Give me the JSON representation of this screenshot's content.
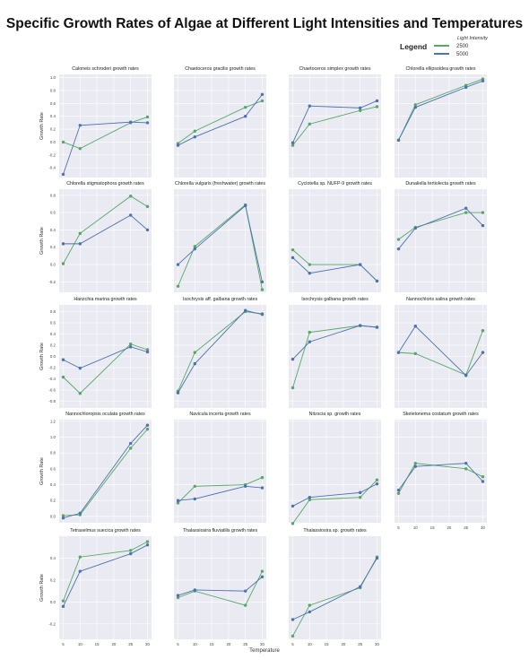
{
  "title": "Specific Growth Rates of Algae at Different Light Intensities and Temperatures",
  "legend": {
    "title": "Legend",
    "subtitle": "Light Intensity",
    "items": [
      {
        "label": "2500",
        "color": "#55a868"
      },
      {
        "label": "5000",
        "color": "#4c72b0"
      }
    ]
  },
  "xlabel": "Temperature",
  "chart_data": [
    {
      "type": "line",
      "title": "Caloneis schroderi growth rates",
      "ylabel": "Growth Rate",
      "x": [
        5,
        10,
        25,
        30
      ],
      "xticks": [],
      "ylim": [
        -0.55,
        1.05
      ],
      "yticks": [
        -0.4,
        -0.2,
        0.0,
        0.2,
        0.4,
        0.6,
        0.8,
        1.0
      ],
      "series": [
        {
          "name": "2500",
          "values": [
            0.0,
            -0.1,
            0.3,
            0.39
          ]
        },
        {
          "name": "5000",
          "values": [
            -0.5,
            0.26,
            0.31,
            0.3
          ]
        }
      ]
    },
    {
      "type": "line",
      "title": "Chaetoceros gracilis growth rates",
      "x": [
        5,
        10,
        25,
        30
      ],
      "ylim": [
        -0.55,
        1.05
      ],
      "series": [
        {
          "name": "2500",
          "values": [
            -0.02,
            0.17,
            0.54,
            0.64
          ]
        },
        {
          "name": "5000",
          "values": [
            -0.05,
            0.08,
            0.4,
            0.74
          ]
        }
      ]
    },
    {
      "type": "line",
      "title": "Chaetoceros simplex growth rates",
      "x": [
        5,
        10,
        25,
        30
      ],
      "ylim": [
        -0.55,
        1.05
      ],
      "series": [
        {
          "name": "2500",
          "values": [
            -0.05,
            0.28,
            0.49,
            0.55
          ]
        },
        {
          "name": "5000",
          "values": [
            -0.01,
            0.56,
            0.53,
            0.64
          ]
        }
      ]
    },
    {
      "type": "line",
      "title": "Chlorella ellipsoidea growth rates",
      "x": [
        5,
        10,
        25,
        30
      ],
      "ylim": [
        -0.55,
        1.05
      ],
      "series": [
        {
          "name": "2500",
          "values": [
            0.03,
            0.58,
            0.88,
            0.98
          ]
        },
        {
          "name": "5000",
          "values": [
            0.03,
            0.54,
            0.85,
            0.95
          ]
        }
      ]
    },
    {
      "type": "line",
      "title": "Chlorella stigmatophora growth rates",
      "ylabel": "Growth Rate",
      "x": [
        5,
        10,
        25,
        30
      ],
      "ylim": [
        -0.32,
        0.87
      ],
      "yticks": [
        -0.2,
        0.0,
        0.2,
        0.4,
        0.6,
        0.8
      ],
      "series": [
        {
          "name": "2500",
          "values": [
            0.01,
            0.36,
            0.79,
            0.67
          ]
        },
        {
          "name": "5000",
          "values": [
            0.24,
            0.24,
            0.57,
            0.4
          ]
        }
      ]
    },
    {
      "type": "line",
      "title": "Chlorella vulgaris (freshwater) growth rates",
      "x": [
        5,
        10,
        25,
        30
      ],
      "ylim": [
        -0.32,
        0.87
      ],
      "series": [
        {
          "name": "2500",
          "values": [
            -0.25,
            0.21,
            0.69,
            -0.29
          ]
        },
        {
          "name": "5000",
          "values": [
            0.0,
            0.18,
            0.68,
            -0.2
          ]
        }
      ]
    },
    {
      "type": "line",
      "title": "Cyclotella sp. NUFP-9 growth rates",
      "x": [
        5,
        10,
        25,
        30
      ],
      "ylim": [
        -0.32,
        0.87
      ],
      "series": [
        {
          "name": "2500",
          "values": [
            0.17,
            0.0,
            0.0,
            -0.19
          ]
        },
        {
          "name": "5000",
          "values": [
            0.08,
            -0.1,
            0.0,
            -0.19
          ]
        }
      ]
    },
    {
      "type": "line",
      "title": "Dunaliella tertiolecta growth rates",
      "x": [
        5,
        10,
        25,
        30
      ],
      "ylim": [
        -0.32,
        0.87
      ],
      "series": [
        {
          "name": "2500",
          "values": [
            0.29,
            0.43,
            0.6,
            0.6
          ]
        },
        {
          "name": "5000",
          "values": [
            0.18,
            0.42,
            0.65,
            0.45
          ]
        }
      ]
    },
    {
      "type": "line",
      "title": "Hanzchia marina growth rates",
      "ylabel": "Growth Rate",
      "x": [
        5,
        10,
        25,
        30
      ],
      "ylim": [
        -0.92,
        0.92
      ],
      "yticks": [
        -0.8,
        -0.6,
        -0.4,
        -0.2,
        0.0,
        0.2,
        0.4,
        0.6,
        0.8
      ],
      "series": [
        {
          "name": "2500",
          "values": [
            -0.37,
            -0.66,
            0.22,
            0.12
          ]
        },
        {
          "name": "5000",
          "values": [
            -0.06,
            -0.21,
            0.17,
            0.08
          ]
        }
      ]
    },
    {
      "type": "line",
      "title": "Isochrysis aff. galbana growth rates",
      "x": [
        5,
        10,
        25,
        30
      ],
      "ylim": [
        -0.92,
        0.92
      ],
      "series": [
        {
          "name": "2500",
          "values": [
            -0.62,
            0.07,
            0.8,
            0.76
          ]
        },
        {
          "name": "5000",
          "values": [
            -0.65,
            -0.13,
            0.82,
            0.75
          ]
        }
      ]
    },
    {
      "type": "line",
      "title": "Isochrysis galbana growth rates",
      "x": [
        5,
        10,
        25,
        30
      ],
      "ylim": [
        -0.92,
        0.92
      ],
      "series": [
        {
          "name": "2500",
          "values": [
            -0.56,
            0.43,
            0.55,
            0.52
          ]
        },
        {
          "name": "5000",
          "values": [
            -0.05,
            0.26,
            0.55,
            0.52
          ]
        }
      ]
    },
    {
      "type": "line",
      "title": "Nannochloris salina growth rates",
      "x": [
        5,
        10,
        25,
        30
      ],
      "ylim": [
        -0.92,
        0.92
      ],
      "series": [
        {
          "name": "2500",
          "values": [
            0.07,
            0.05,
            -0.33,
            0.46
          ]
        },
        {
          "name": "5000",
          "values": [
            0.07,
            0.54,
            -0.34,
            0.07
          ]
        }
      ]
    },
    {
      "type": "line",
      "title": "Nannochloropsis oculata growth rates",
      "ylabel": "Growth Rate",
      "x": [
        5,
        10,
        25,
        30
      ],
      "ylim": [
        -0.08,
        1.22
      ],
      "yticks": [
        0.0,
        0.2,
        0.4,
        0.6,
        0.8,
        1.0,
        1.2
      ],
      "series": [
        {
          "name": "2500",
          "values": [
            0.01,
            0.02,
            0.86,
            1.1
          ]
        },
        {
          "name": "5000",
          "values": [
            -0.02,
            0.04,
            0.92,
            1.15
          ]
        }
      ]
    },
    {
      "type": "line",
      "title": "Navicula incerta growth rates",
      "x": [
        5,
        10,
        25,
        30
      ],
      "ylim": [
        -0.08,
        1.22
      ],
      "series": [
        {
          "name": "2500",
          "values": [
            0.17,
            0.38,
            0.4,
            0.49
          ]
        },
        {
          "name": "5000",
          "values": [
            0.2,
            0.22,
            0.38,
            0.36
          ]
        }
      ]
    },
    {
      "type": "line",
      "title": "Nitzscia sp. growth rates",
      "x": [
        5,
        10,
        25,
        30
      ],
      "ylim": [
        -0.08,
        1.22
      ],
      "series": [
        {
          "name": "2500",
          "values": [
            -0.09,
            0.21,
            0.24,
            0.46
          ]
        },
        {
          "name": "5000",
          "values": [
            0.13,
            0.24,
            0.3,
            0.41
          ]
        }
      ]
    },
    {
      "type": "line",
      "title": "Skeletonema costatum growth rates",
      "x": [
        5,
        10,
        25,
        30
      ],
      "xticks": [
        5,
        10,
        15,
        20,
        25,
        30
      ],
      "ylim": [
        -0.08,
        1.22
      ],
      "series": [
        {
          "name": "2500",
          "values": [
            0.29,
            0.67,
            0.6,
            0.5
          ]
        },
        {
          "name": "5000",
          "values": [
            0.33,
            0.63,
            0.67,
            0.44
          ]
        }
      ]
    },
    {
      "type": "line",
      "title": "Tetraselmus suecica growth rates",
      "ylabel": "Growth Rate",
      "x": [
        5,
        10,
        25,
        30
      ],
      "xticks": [
        5,
        10,
        15,
        20,
        25,
        30
      ],
      "ylim": [
        -0.34,
        0.6
      ],
      "yticks": [
        -0.2,
        0.0,
        0.2,
        0.4
      ],
      "series": [
        {
          "name": "2500",
          "values": [
            0.01,
            0.41,
            0.47,
            0.55
          ]
        },
        {
          "name": "5000",
          "values": [
            -0.04,
            0.28,
            0.44,
            0.52
          ]
        }
      ]
    },
    {
      "type": "line",
      "title": "Thalassiosira fluviatilis growth rates",
      "x": [
        5,
        10,
        25,
        30
      ],
      "xticks": [
        5,
        10,
        15,
        20,
        25,
        30
      ],
      "ylim": [
        -0.34,
        0.6
      ],
      "series": [
        {
          "name": "2500",
          "values": [
            0.04,
            0.1,
            -0.03,
            0.28
          ]
        },
        {
          "name": "5000",
          "values": [
            0.06,
            0.11,
            0.1,
            0.23
          ]
        }
      ]
    },
    {
      "type": "line",
      "title": "Thalassiosira sp. growth rates",
      "x": [
        5,
        10,
        25,
        30
      ],
      "xticks": [
        5,
        10,
        15,
        20,
        25,
        30
      ],
      "ylim": [
        -0.34,
        0.6
      ],
      "series": [
        {
          "name": "2500",
          "values": [
            -0.31,
            -0.03,
            0.13,
            0.41
          ]
        },
        {
          "name": "5000",
          "values": [
            -0.16,
            -0.09,
            0.14,
            0.4
          ]
        }
      ]
    }
  ]
}
